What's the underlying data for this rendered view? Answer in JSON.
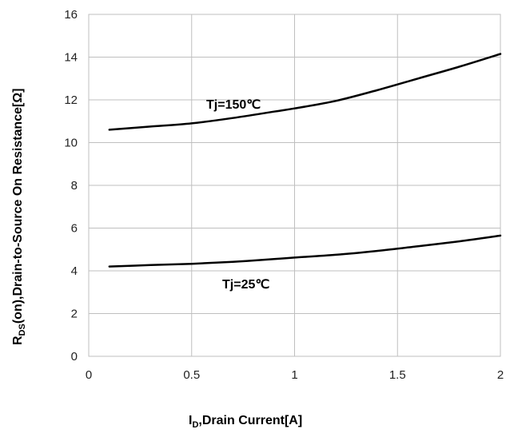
{
  "chart_data": {
    "type": "line",
    "xlabel": {
      "main": "I",
      "sub": "D",
      "rest": ",Drain Current[A]"
    },
    "ylabel": {
      "main": "R",
      "sub": "DS",
      "rest": "(on),Drain-to-Source On  Resistance[Ω]"
    },
    "xlim": [
      0,
      2
    ],
    "ylim": [
      0,
      16
    ],
    "xticks": [
      "0",
      "0.5",
      "1",
      "1.5",
      "2"
    ],
    "yticks": [
      "0",
      "2",
      "4",
      "6",
      "8",
      "10",
      "12",
      "14",
      "16"
    ],
    "grid": true,
    "series": [
      {
        "name": "Tj=150℃",
        "x": [
          0.1,
          0.3,
          0.5,
          0.7,
          0.9,
          1.0,
          1.2,
          1.4,
          1.6,
          1.8,
          2.0
        ],
        "y": [
          10.6,
          10.75,
          10.9,
          11.15,
          11.45,
          11.6,
          11.95,
          12.45,
          13.0,
          13.55,
          14.15
        ]
      },
      {
        "name": "Tj=25℃",
        "x": [
          0.1,
          0.3,
          0.5,
          0.7,
          0.9,
          1.0,
          1.2,
          1.4,
          1.6,
          1.8,
          2.0
        ],
        "y": [
          4.2,
          4.27,
          4.33,
          4.42,
          4.55,
          4.62,
          4.75,
          4.93,
          5.15,
          5.38,
          5.65
        ]
      }
    ]
  }
}
